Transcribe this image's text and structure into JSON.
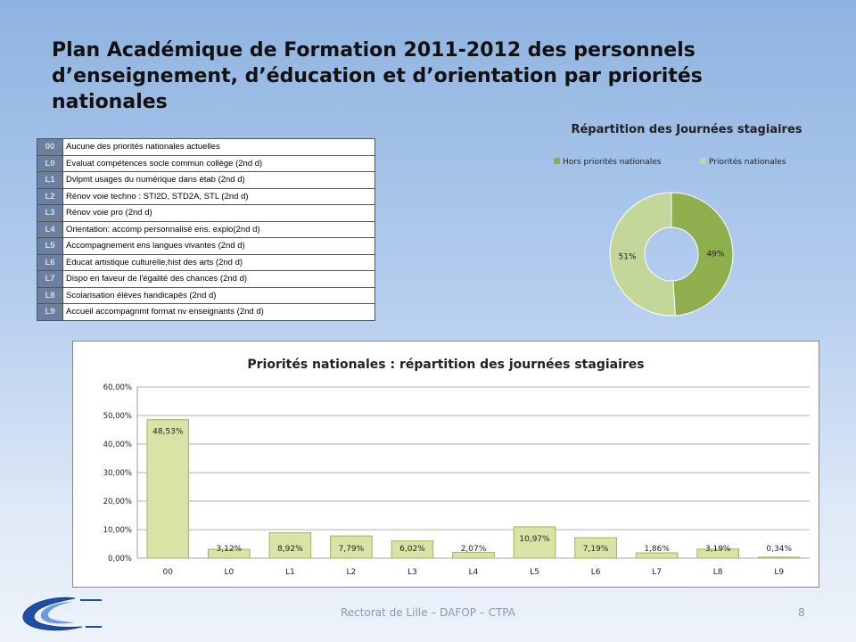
{
  "slide": {
    "title": "Plan Académique de Formation 2011-2012  des personnels d’enseignement, d’éducation et d’orientation par priorités nationales",
    "footer": "Rectorat de Lille – DAFOP – CTPA",
    "page_number": "8"
  },
  "legend_table": [
    {
      "code": "00",
      "label": "Aucune des priorités nationales actuelles"
    },
    {
      "code": "L0",
      "label": "Evaluat compétences socle commun collège  (2nd d)"
    },
    {
      "code": "L1",
      "label": "Dvlpmt  usages du numérique dans  étab (2nd d)"
    },
    {
      "code": "L2",
      "label": "Rénov voie techno : STI2D, STD2A, STL  (2nd d)"
    },
    {
      "code": "L3",
      "label": "Rénov voie pro (2nd d)"
    },
    {
      "code": "L4",
      "label": "Orientation: accomp personnalisé ens. explo(2nd d)"
    },
    {
      "code": "L5",
      "label": "Accompagnement ens  langues vivantes (2nd d)"
    },
    {
      "code": "L6",
      "label": "Educat artistique culturelle,hist des arts (2nd d)"
    },
    {
      "code": "L7",
      "label": "Dispo en faveur de l'égalité des chances (2nd d)"
    },
    {
      "code": "L8",
      "label": "Scolarisation élèves handicapés (2nd d)"
    },
    {
      "code": "L9",
      "label": "Accueil accompagnmt format nv enseignants (2nd d)"
    }
  ],
  "colors": {
    "donut_hors": "#8fae4d",
    "donut_prio": "#c4d79b",
    "bar_fill": "#d7e4a6",
    "bar_edge": "#9fb35e",
    "table_code_bg": "#6b7fa0"
  },
  "chart_data": [
    {
      "type": "pie",
      "title": "Répartition des Journées stagiaires",
      "legend_position": "top",
      "categories": [
        "Hors priorités nationales",
        "Priorités nationales"
      ],
      "values": [
        49,
        51
      ],
      "labels": [
        "49%",
        "51%"
      ]
    },
    {
      "type": "bar",
      "title": "Priorités nationales : répartition des journées stagiaires",
      "categories": [
        "00",
        "L0",
        "L1",
        "L2",
        "L3",
        "L4",
        "L5",
        "L6",
        "L7",
        "L8",
        "L9"
      ],
      "values": [
        48.53,
        3.12,
        8.92,
        7.79,
        6.02,
        2.07,
        10.97,
        7.19,
        1.86,
        3.19,
        0.34
      ],
      "value_labels": [
        "48,53%",
        "3,12%",
        "8,92%",
        "7,79%",
        "6,02%",
        "2,07%",
        "10,97%",
        "7,19%",
        "1,86%",
        "3,19%",
        "0,34%"
      ],
      "ylim": [
        0,
        60
      ],
      "yticks": [
        "0,00%",
        "10,00%",
        "20,00%",
        "30,00%",
        "40,00%",
        "50,00%",
        "60,00%"
      ],
      "grid": true
    }
  ]
}
